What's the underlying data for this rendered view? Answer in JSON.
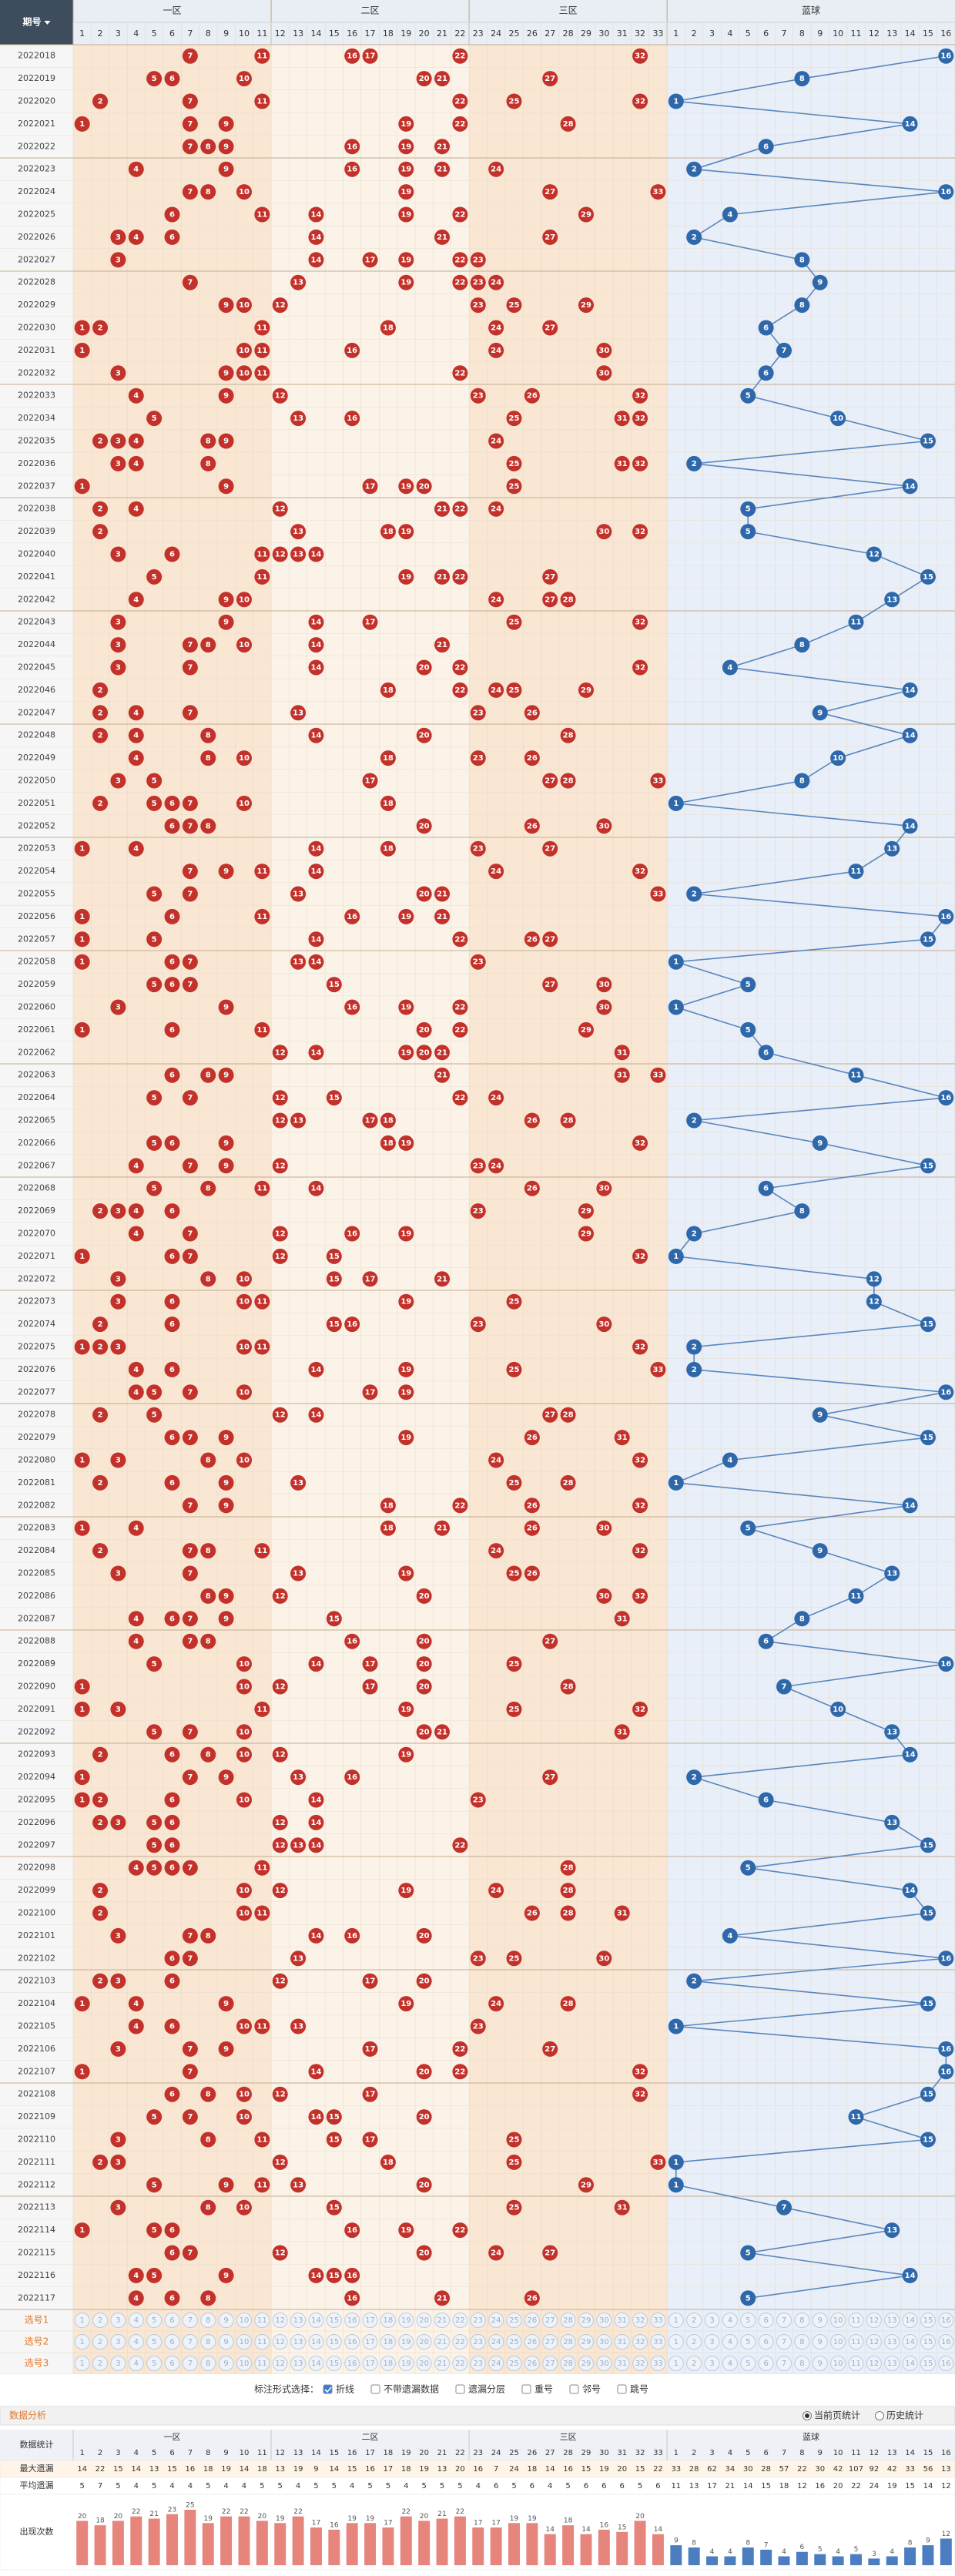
{
  "header": {
    "period_label": "期号",
    "zones": [
      "一区",
      "二区",
      "三区",
      "蓝球"
    ],
    "red_numbers": [
      1,
      2,
      3,
      4,
      5,
      6,
      7,
      8,
      9,
      10,
      11,
      12,
      13,
      14,
      15,
      16,
      17,
      18,
      19,
      20,
      21,
      22,
      23,
      24,
      25,
      26,
      27,
      28,
      29,
      30,
      31,
      32,
      33
    ],
    "blue_numbers": [
      1,
      2,
      3,
      4,
      5,
      6,
      7,
      8,
      9,
      10,
      11,
      12,
      13,
      14,
      15,
      16
    ]
  },
  "rows": [
    {
      "period": "2022018",
      "red": [
        7,
        11,
        16,
        17,
        22,
        32
      ],
      "blue": 16
    },
    {
      "period": "2022019",
      "red": [
        5,
        6,
        10,
        20,
        21,
        27
      ],
      "blue": 8
    },
    {
      "period": "2022020",
      "red": [
        2,
        7,
        11,
        22,
        25,
        32
      ],
      "blue": 1
    },
    {
      "period": "2022021",
      "red": [
        1,
        7,
        9,
        19,
        22,
        28
      ],
      "blue": 14
    },
    {
      "period": "2022022",
      "red": [
        7,
        8,
        9,
        16,
        19,
        21
      ],
      "blue": 6
    },
    {
      "period": "2022023",
      "red": [
        4,
        9,
        16,
        19,
        21,
        24
      ],
      "blue": 2
    },
    {
      "period": "2022024",
      "red": [
        7,
        8,
        10,
        19,
        27,
        33
      ],
      "blue": 16
    },
    {
      "period": "2022025",
      "red": [
        6,
        11,
        14,
        19,
        22,
        29
      ],
      "blue": 4
    },
    {
      "period": "2022026",
      "red": [
        3,
        4,
        6,
        14,
        21,
        27
      ],
      "blue": 2
    },
    {
      "period": "2022027",
      "red": [
        3,
        14,
        17,
        19,
        22,
        23
      ],
      "blue": 8
    },
    {
      "period": "2022028",
      "red": [
        7,
        13,
        19,
        22,
        23,
        24
      ],
      "blue": 9
    },
    {
      "period": "2022029",
      "red": [
        9,
        10,
        12,
        23,
        25,
        29
      ],
      "blue": 8
    },
    {
      "period": "2022030",
      "red": [
        1,
        2,
        11,
        18,
        24,
        27
      ],
      "blue": 6
    },
    {
      "period": "2022031",
      "red": [
        1,
        10,
        11,
        16,
        24,
        30
      ],
      "blue": 7
    },
    {
      "period": "2022032",
      "red": [
        3,
        9,
        10,
        11,
        22,
        30
      ],
      "blue": 6
    },
    {
      "period": "2022033",
      "red": [
        4,
        9,
        12,
        23,
        26,
        32
      ],
      "blue": 5
    },
    {
      "period": "2022034",
      "red": [
        5,
        13,
        16,
        25,
        31,
        32
      ],
      "blue": 10
    },
    {
      "period": "2022035",
      "red": [
        2,
        3,
        4,
        8,
        9,
        24
      ],
      "blue": 15
    },
    {
      "period": "2022036",
      "red": [
        3,
        4,
        8,
        25,
        31,
        32
      ],
      "blue": 2
    },
    {
      "period": "2022037",
      "red": [
        1,
        9,
        17,
        19,
        20,
        25
      ],
      "blue": 14
    },
    {
      "period": "2022038",
      "red": [
        2,
        4,
        12,
        21,
        22,
        24
      ],
      "blue": 5
    },
    {
      "period": "2022039",
      "red": [
        2,
        13,
        18,
        19,
        30,
        32
      ],
      "blue": 5
    },
    {
      "period": "2022040",
      "red": [
        3,
        6,
        11,
        12,
        13,
        14
      ],
      "blue": 12
    },
    {
      "period": "2022041",
      "red": [
        5,
        11,
        19,
        21,
        22,
        27
      ],
      "blue": 15
    },
    {
      "period": "2022042",
      "red": [
        4,
        9,
        10,
        24,
        27,
        28
      ],
      "blue": 13
    },
    {
      "period": "2022043",
      "red": [
        3,
        9,
        14,
        17,
        25,
        32
      ],
      "blue": 11
    },
    {
      "period": "2022044",
      "red": [
        3,
        7,
        8,
        10,
        14,
        21
      ],
      "blue": 8
    },
    {
      "period": "2022045",
      "red": [
        3,
        7,
        14,
        20,
        22,
        32
      ],
      "blue": 4
    },
    {
      "period": "2022046",
      "red": [
        2,
        18,
        22,
        24,
        25,
        29
      ],
      "blue": 14
    },
    {
      "period": "2022047",
      "red": [
        2,
        4,
        7,
        13,
        23,
        26
      ],
      "blue": 9
    },
    {
      "period": "2022048",
      "red": [
        2,
        4,
        8,
        14,
        20,
        28
      ],
      "blue": 14
    },
    {
      "period": "2022049",
      "red": [
        4,
        8,
        10,
        18,
        23,
        26
      ],
      "blue": 10
    },
    {
      "period": "2022050",
      "red": [
        3,
        5,
        17,
        27,
        28,
        33
      ],
      "blue": 8
    },
    {
      "period": "2022051",
      "red": [
        2,
        5,
        6,
        7,
        10,
        18
      ],
      "blue": 1
    },
    {
      "period": "2022052",
      "red": [
        6,
        7,
        8,
        20,
        26,
        30
      ],
      "blue": 14
    },
    {
      "period": "2022053",
      "red": [
        1,
        4,
        14,
        18,
        23,
        27
      ],
      "blue": 13
    },
    {
      "period": "2022054",
      "red": [
        7,
        9,
        11,
        14,
        24,
        32
      ],
      "blue": 11
    },
    {
      "period": "2022055",
      "red": [
        5,
        7,
        13,
        20,
        21,
        33
      ],
      "blue": 2
    },
    {
      "period": "2022056",
      "red": [
        1,
        6,
        11,
        16,
        19,
        21
      ],
      "blue": 16
    },
    {
      "period": "2022057",
      "red": [
        1,
        5,
        14,
        22,
        26,
        27
      ],
      "blue": 15
    },
    {
      "period": "2022058",
      "red": [
        1,
        6,
        7,
        13,
        14,
        23
      ],
      "blue": 1
    },
    {
      "period": "2022059",
      "red": [
        5,
        6,
        7,
        15,
        27,
        30
      ],
      "blue": 5
    },
    {
      "period": "2022060",
      "red": [
        3,
        9,
        16,
        19,
        22,
        30
      ],
      "blue": 1
    },
    {
      "period": "2022061",
      "red": [
        1,
        6,
        11,
        20,
        22,
        29
      ],
      "blue": 5
    },
    {
      "period": "2022062",
      "red": [
        12,
        14,
        19,
        20,
        21,
        31
      ],
      "blue": 6
    },
    {
      "period": "2022063",
      "red": [
        6,
        8,
        9,
        21,
        31,
        33
      ],
      "blue": 11
    },
    {
      "period": "2022064",
      "red": [
        5,
        7,
        12,
        15,
        22,
        24
      ],
      "blue": 16
    },
    {
      "period": "2022065",
      "red": [
        12,
        13,
        17,
        18,
        26,
        28
      ],
      "blue": 2
    },
    {
      "period": "2022066",
      "red": [
        5,
        6,
        9,
        18,
        19,
        32
      ],
      "blue": 9
    },
    {
      "period": "2022067",
      "red": [
        4,
        7,
        9,
        12,
        23,
        24
      ],
      "blue": 15
    },
    {
      "period": "2022068",
      "red": [
        5,
        8,
        11,
        14,
        26,
        30
      ],
      "blue": 6
    },
    {
      "period": "2022069",
      "red": [
        2,
        3,
        4,
        6,
        23,
        29
      ],
      "blue": 8
    },
    {
      "period": "2022070",
      "red": [
        4,
        7,
        12,
        16,
        19,
        29
      ],
      "blue": 2
    },
    {
      "period": "2022071",
      "red": [
        1,
        6,
        7,
        12,
        15,
        32
      ],
      "blue": 1
    },
    {
      "period": "2022072",
      "red": [
        3,
        8,
        10,
        15,
        17,
        21
      ],
      "blue": 12
    },
    {
      "period": "2022073",
      "red": [
        3,
        6,
        10,
        11,
        19,
        25
      ],
      "blue": 12
    },
    {
      "period": "2022074",
      "red": [
        2,
        6,
        15,
        16,
        23,
        30
      ],
      "blue": 15
    },
    {
      "period": "2022075",
      "red": [
        1,
        2,
        3,
        10,
        11,
        32
      ],
      "blue": 2
    },
    {
      "period": "2022076",
      "red": [
        4,
        6,
        14,
        19,
        25,
        33
      ],
      "blue": 2
    },
    {
      "period": "2022077",
      "red": [
        4,
        5,
        7,
        10,
        17,
        19
      ],
      "blue": 16
    },
    {
      "period": "2022078",
      "red": [
        2,
        5,
        12,
        14,
        27,
        28
      ],
      "blue": 9
    },
    {
      "period": "2022079",
      "red": [
        6,
        7,
        9,
        19,
        26,
        31
      ],
      "blue": 15
    },
    {
      "period": "2022080",
      "red": [
        1,
        3,
        8,
        10,
        24,
        32
      ],
      "blue": 4
    },
    {
      "period": "2022081",
      "red": [
        2,
        6,
        9,
        13,
        25,
        28
      ],
      "blue": 1
    },
    {
      "period": "2022082",
      "red": [
        7,
        9,
        18,
        22,
        26,
        32
      ],
      "blue": 14
    },
    {
      "period": "2022083",
      "red": [
        1,
        4,
        18,
        21,
        26,
        30
      ],
      "blue": 5
    },
    {
      "period": "2022084",
      "red": [
        2,
        7,
        8,
        11,
        24,
        32
      ],
      "blue": 9
    },
    {
      "period": "2022085",
      "red": [
        3,
        7,
        13,
        19,
        25,
        26
      ],
      "blue": 13
    },
    {
      "period": "2022086",
      "red": [
        8,
        9,
        12,
        20,
        30,
        32
      ],
      "blue": 11
    },
    {
      "period": "2022087",
      "red": [
        4,
        6,
        7,
        9,
        15,
        31
      ],
      "blue": 8
    },
    {
      "period": "2022088",
      "red": [
        4,
        7,
        8,
        16,
        20,
        27
      ],
      "blue": 6
    },
    {
      "period": "2022089",
      "red": [
        5,
        10,
        14,
        17,
        20,
        25
      ],
      "blue": 16
    },
    {
      "period": "2022090",
      "red": [
        1,
        10,
        12,
        17,
        20,
        28
      ],
      "blue": 7
    },
    {
      "period": "2022091",
      "red": [
        1,
        3,
        11,
        19,
        25,
        32
      ],
      "blue": 10
    },
    {
      "period": "2022092",
      "red": [
        5,
        7,
        10,
        20,
        21,
        31
      ],
      "blue": 13
    },
    {
      "period": "2022093",
      "red": [
        2,
        6,
        8,
        10,
        12,
        19
      ],
      "blue": 14
    },
    {
      "period": "2022094",
      "red": [
        1,
        7,
        9,
        13,
        16,
        27
      ],
      "blue": 2
    },
    {
      "period": "2022095",
      "red": [
        1,
        2,
        6,
        10,
        14,
        23
      ],
      "blue": 6
    },
    {
      "period": "2022096",
      "red": [
        2,
        3,
        5,
        6,
        12,
        14
      ],
      "blue": 13
    },
    {
      "period": "2022097",
      "red": [
        5,
        6,
        12,
        13,
        14,
        22
      ],
      "blue": 15
    },
    {
      "period": "2022098",
      "red": [
        4,
        5,
        6,
        7,
        11,
        28
      ],
      "blue": 5
    },
    {
      "period": "2022099",
      "red": [
        2,
        10,
        12,
        19,
        24,
        28
      ],
      "blue": 14
    },
    {
      "period": "2022100",
      "red": [
        2,
        10,
        11,
        26,
        28,
        31
      ],
      "blue": 15
    },
    {
      "period": "2022101",
      "red": [
        3,
        7,
        8,
        14,
        16,
        20
      ],
      "blue": 4
    },
    {
      "period": "2022102",
      "red": [
        6,
        7,
        13,
        23,
        25,
        30
      ],
      "blue": 16
    },
    {
      "period": "2022103",
      "red": [
        2,
        3,
        6,
        12,
        17,
        20
      ],
      "blue": 2
    },
    {
      "period": "2022104",
      "red": [
        1,
        4,
        9,
        19,
        24,
        28
      ],
      "blue": 15
    },
    {
      "period": "2022105",
      "red": [
        4,
        6,
        10,
        11,
        13,
        23
      ],
      "blue": 1
    },
    {
      "period": "2022106",
      "red": [
        3,
        7,
        9,
        17,
        22,
        27
      ],
      "blue": 16
    },
    {
      "period": "2022107",
      "red": [
        1,
        7,
        14,
        20,
        22,
        32
      ],
      "blue": 16
    },
    {
      "period": "2022108",
      "red": [
        6,
        8,
        10,
        12,
        17,
        32
      ],
      "blue": 15
    },
    {
      "period": "2022109",
      "red": [
        5,
        7,
        10,
        14,
        15,
        20
      ],
      "blue": 11
    },
    {
      "period": "2022110",
      "red": [
        3,
        8,
        11,
        15,
        17,
        25
      ],
      "blue": 15
    },
    {
      "period": "2022111",
      "red": [
        2,
        3,
        12,
        18,
        25,
        33
      ],
      "blue": 1
    },
    {
      "period": "2022112",
      "red": [
        5,
        9,
        11,
        13,
        20,
        29
      ],
      "blue": 1
    },
    {
      "period": "2022113",
      "red": [
        3,
        8,
        10,
        15,
        25,
        31
      ],
      "blue": 7
    },
    {
      "period": "2022114",
      "red": [
        1,
        5,
        6,
        16,
        19,
        22
      ],
      "blue": 13
    },
    {
      "period": "2022115",
      "red": [
        6,
        7,
        12,
        20,
        24,
        27
      ],
      "blue": 5
    },
    {
      "period": "2022116",
      "red": [
        4,
        5,
        9,
        14,
        15,
        16
      ],
      "blue": 14
    },
    {
      "period": "2022117",
      "red": [
        4,
        6,
        8,
        16,
        21,
        26
      ],
      "blue": 5
    }
  ],
  "select_rows": [
    "选号1",
    "选号2",
    "选号3"
  ],
  "options": {
    "label": "标注形式选择：",
    "items": [
      {
        "text": "折线",
        "checked": true
      },
      {
        "text": "不带遗漏数据",
        "checked": false
      },
      {
        "text": "遗漏分层",
        "checked": false
      },
      {
        "text": "重号",
        "checked": false
      },
      {
        "text": "邻号",
        "checked": false
      },
      {
        "text": "跳号",
        "checked": false
      }
    ]
  },
  "analysis": {
    "title": "数据分析",
    "scope": [
      {
        "text": "当前页统计",
        "selected": true
      },
      {
        "text": "历史统计",
        "selected": false
      }
    ],
    "stats_label": "数据统计",
    "max_miss": {
      "label": "最大遗漏",
      "values": [
        14,
        22,
        15,
        14,
        13,
        15,
        16,
        18,
        19,
        14,
        18,
        13,
        19,
        9,
        14,
        15,
        16,
        17,
        18,
        19,
        13,
        20,
        16,
        7,
        24,
        18,
        14,
        16,
        15,
        19,
        20,
        15,
        22,
        33,
        28,
        62,
        34,
        30,
        28,
        57,
        22,
        30,
        42,
        107,
        92,
        42,
        33,
        56,
        13
      ]
    },
    "avg_miss": {
      "label": "平均遗漏",
      "values": [
        5,
        7,
        5,
        4,
        5,
        4,
        4,
        5,
        4,
        4,
        5,
        5,
        4,
        5,
        5,
        4,
        5,
        5,
        4,
        5,
        5,
        5,
        4,
        6,
        5,
        6,
        4,
        5,
        6,
        6,
        6,
        5,
        6,
        11,
        13,
        17,
        21,
        14,
        15,
        18,
        12,
        16,
        20,
        22,
        24,
        19,
        15,
        14,
        12
      ]
    },
    "appearances": {
      "label": "出现次数",
      "values": [
        20,
        18,
        20,
        22,
        21,
        23,
        25,
        19,
        22,
        22,
        20,
        19,
        22,
        17,
        16,
        19,
        19,
        17,
        22,
        20,
        21,
        22,
        17,
        17,
        19,
        19,
        14,
        18,
        14,
        16,
        15,
        20,
        14,
        9,
        8,
        4,
        4,
        8,
        7,
        4,
        6,
        5,
        4,
        5,
        3,
        4,
        8,
        9,
        12
      ]
    }
  }
}
